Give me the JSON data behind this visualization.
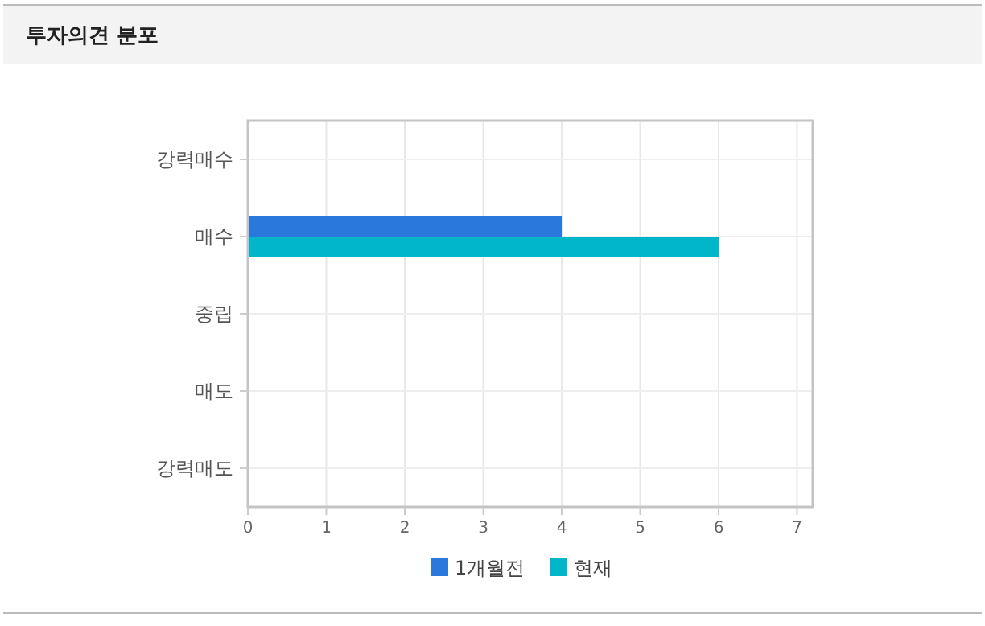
{
  "chart_data": {
    "type": "bar",
    "orientation": "horizontal",
    "title": "투자의견 분포",
    "categories": [
      "강력매수",
      "매수",
      "중립",
      "매도",
      "강력매도"
    ],
    "series": [
      {
        "name": "1개월전",
        "color": "#2a78dc",
        "values": [
          0,
          4,
          0,
          0,
          0
        ]
      },
      {
        "name": "현재",
        "color": "#00b6c8",
        "values": [
          0,
          6,
          0,
          0,
          0
        ]
      }
    ],
    "xlim": [
      0,
      7.2
    ],
    "xticks": [
      0,
      1,
      2,
      3,
      4,
      5,
      6,
      7
    ],
    "grid": true,
    "legend": "bottom"
  }
}
